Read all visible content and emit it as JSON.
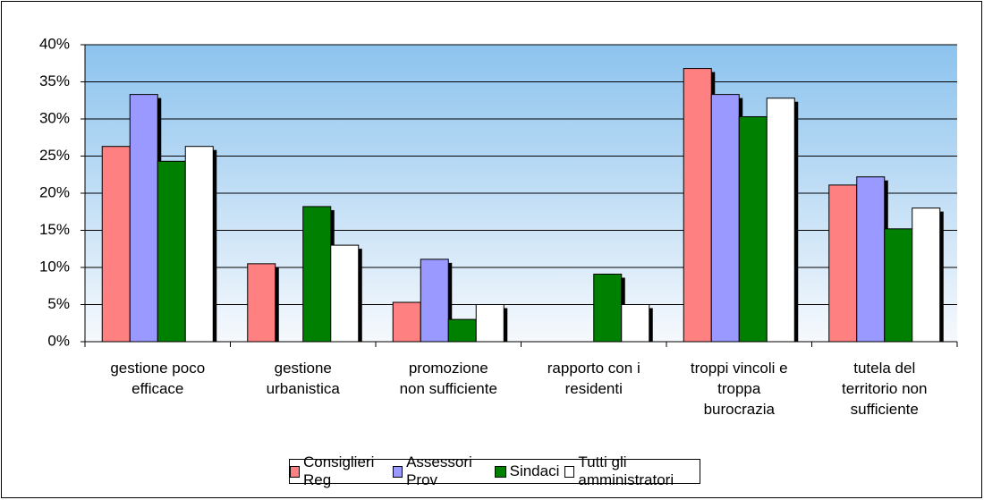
{
  "chart_data": {
    "type": "bar",
    "categories": [
      "gestione poco\nefficace",
      "gestione\nurbanistica",
      "promozione\nnon sufficiente",
      "rapporto con i\nresidenti",
      "troppi vincoli e\ntroppa\nburocrazia",
      "tutela del\nterritorio non\nsufficiente"
    ],
    "series": [
      {
        "name": "Consiglieri Reg",
        "color": "#ff8080",
        "values": [
          26.3,
          10.5,
          5.3,
          0,
          36.8,
          21.1
        ]
      },
      {
        "name": "Assessori Prov",
        "color": "#9999ff",
        "values": [
          33.3,
          0,
          11.1,
          0,
          33.3,
          22.2
        ]
      },
      {
        "name": "Sindaci",
        "color": "#008000",
        "values": [
          24.3,
          18.2,
          3.0,
          9.1,
          30.3,
          15.2
        ]
      },
      {
        "name": "Tutti gli amministratori",
        "color": "#ffffff",
        "values": [
          26.3,
          13.0,
          5.0,
          5.0,
          32.8,
          18.0
        ]
      }
    ],
    "ylim": [
      0,
      40
    ],
    "yticks": [
      {
        "value": 0,
        "label": "0%"
      },
      {
        "value": 5,
        "label": "5%"
      },
      {
        "value": 10,
        "label": "10%"
      },
      {
        "value": 15,
        "label": "15%"
      },
      {
        "value": 20,
        "label": "20%"
      },
      {
        "value": 25,
        "label": "25%"
      },
      {
        "value": 30,
        "label": "30%"
      },
      {
        "value": 35,
        "label": "35%"
      },
      {
        "value": 40,
        "label": "40%"
      }
    ],
    "grid": true,
    "legend": "bottom"
  }
}
